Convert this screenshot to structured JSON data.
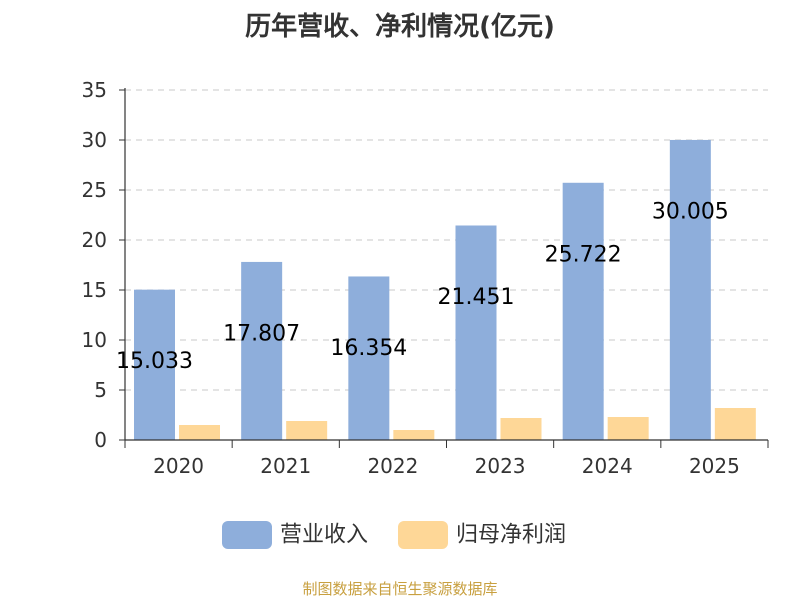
{
  "chart_data": {
    "type": "bar",
    "title": "历年营收、净利情况(亿元)",
    "categories": [
      "2020",
      "2021",
      "2022",
      "2023",
      "2024",
      "2025"
    ],
    "series": [
      {
        "name": "营业收入",
        "color": "#8eaedb",
        "values": [
          15.033,
          17.807,
          16.354,
          21.451,
          25.722,
          30.005
        ],
        "data_labels": [
          "15.033",
          "17.807",
          "16.354",
          "21.451",
          "25.722",
          "30.005"
        ]
      },
      {
        "name": "归母净利润",
        "color": "#fed797",
        "values": [
          1.5,
          1.9,
          1.0,
          2.2,
          2.3,
          3.2
        ]
      }
    ],
    "ylim": [
      0,
      35
    ],
    "yticks": [
      0,
      5,
      10,
      15,
      20,
      25,
      30,
      35
    ],
    "xlabel": "",
    "ylabel": "",
    "grid": "horizontal-dashed",
    "legend_position": "bottom-center"
  },
  "footer": {
    "source_text": "制图数据来自恒生聚源数据库"
  }
}
